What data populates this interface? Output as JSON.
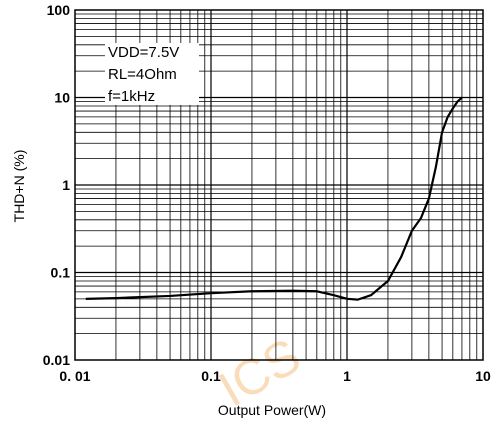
{
  "chart_data": {
    "type": "line",
    "title": "",
    "xlabel": "Output Power(W)",
    "ylabel": "THD+N (%)",
    "xscale": "log",
    "yscale": "log",
    "xlim": [
      0.01,
      10
    ],
    "ylim": [
      0.01,
      100
    ],
    "grid": true,
    "x_tick_labels": [
      "0. 01",
      "0.1",
      "1",
      "10"
    ],
    "y_tick_labels": [
      "0.01",
      "0.1",
      "1",
      "10",
      "100"
    ],
    "annotations": [
      "VDD=7.5V",
      "RL=4Ohm",
      "f=1kHz"
    ],
    "watermark": "ICS",
    "series": [
      {
        "color": "#000000",
        "x": [
          0.012,
          0.02,
          0.05,
          0.1,
          0.2,
          0.4,
          0.6,
          0.8,
          1.0,
          1.2,
          1.5,
          2.0,
          2.5,
          3.0,
          3.5,
          4.0,
          4.5,
          5.0,
          5.5,
          6.0,
          6.5,
          7.0
        ],
        "y": [
          0.05,
          0.051,
          0.054,
          0.058,
          0.061,
          0.062,
          0.061,
          0.055,
          0.05,
          0.049,
          0.055,
          0.08,
          0.15,
          0.3,
          0.42,
          0.7,
          1.6,
          4.0,
          6.0,
          7.5,
          9.0,
          10.0
        ]
      }
    ]
  }
}
